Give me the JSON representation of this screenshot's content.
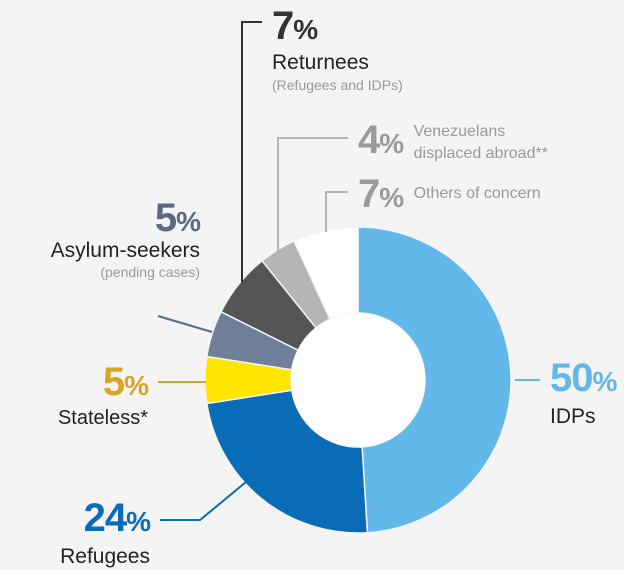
{
  "chart_data": {
    "type": "pie",
    "slices": [
      {
        "label": "IDPs",
        "value": 50,
        "pct_text": "50",
        "sub": "",
        "color": "#63b8ea"
      },
      {
        "label": "Refugees",
        "value": 24,
        "pct_text": "24",
        "sub": "",
        "color": "#0a6cb7"
      },
      {
        "label": "Stateless*",
        "value": 5,
        "pct_text": "5",
        "sub": "",
        "color": "#ffe600"
      },
      {
        "label": "Asylum-seekers",
        "value": 5,
        "pct_text": "5",
        "sub": "(pending cases)",
        "color": "#71809a"
      },
      {
        "label": "Returnees",
        "value": 7,
        "pct_text": "7",
        "sub": "(Refugees and IDPs)",
        "color": "#555555"
      },
      {
        "label": "Venezuelans",
        "value": 4,
        "pct_text": "4",
        "sub": "displaced abroad**",
        "color": "#b5b5b5"
      },
      {
        "label": "Others of concern",
        "value": 7,
        "pct_text": "7",
        "sub": "",
        "color": "#ffffff"
      }
    ],
    "percent_symbol": "%",
    "label_colors": {
      "IDPs": "#63b8ea",
      "Refugees": "#0a6cb7",
      "Stateless": "#d8a625",
      "Asylum-seekers": "#5a6a85",
      "Returnees": "#333333",
      "Venezuelans": "#9a9a9a",
      "Others": "#9a9a9a"
    }
  }
}
